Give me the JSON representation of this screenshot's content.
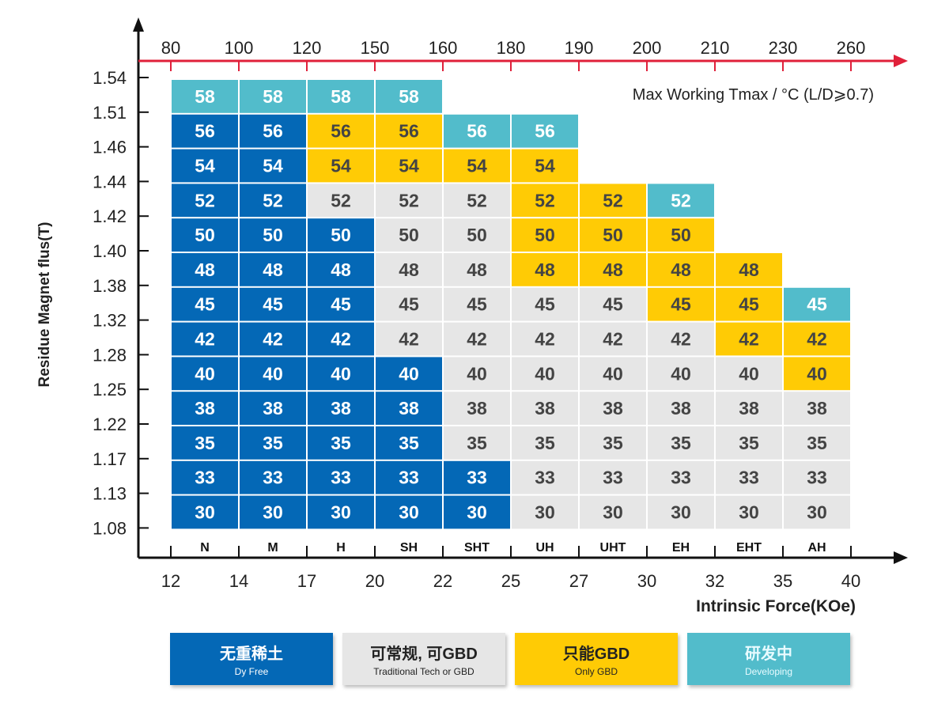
{
  "chart_data": {
    "type": "heatmap",
    "title": "",
    "top_axis_label": "Max Working Tmax / °C (L/D⩾0.7)",
    "xlabel": "Intrinsic Force(KOe)",
    "ylabel": "Residue Magnet flus(T)",
    "grades": [
      "N",
      "M",
      "H",
      "SH",
      "SHT",
      "UH",
      "UHT",
      "EH",
      "EHT",
      "AH"
    ],
    "top_ticks": [
      "80",
      "100",
      "120",
      "150",
      "160",
      "180",
      "190",
      "200",
      "210",
      "230",
      "260"
    ],
    "bottom_ticks": [
      "12",
      "14",
      "17",
      "20",
      "22",
      "25",
      "27",
      "30",
      "32",
      "35",
      "40"
    ],
    "y_ticks": [
      "1.54",
      "1.51",
      "1.46",
      "1.44",
      "1.42",
      "1.40",
      "1.38",
      "1.32",
      "1.28",
      "1.25",
      "1.22",
      "1.17",
      "1.13",
      "1.08"
    ],
    "rows": [
      "58",
      "56",
      "54",
      "52",
      "50",
      "48",
      "45",
      "42",
      "40",
      "38",
      "35",
      "33",
      "30"
    ],
    "cells": [
      [
        "C",
        "C",
        "C",
        "C",
        null,
        null,
        null,
        null,
        null,
        null
      ],
      [
        "B",
        "B",
        "Y",
        "Y",
        "C",
        "C",
        null,
        null,
        null,
        null
      ],
      [
        "B",
        "B",
        "Y",
        "Y",
        "Y",
        "Y",
        null,
        null,
        null,
        null
      ],
      [
        "B",
        "B",
        "G",
        "G",
        "G",
        "Y",
        "Y",
        "C",
        null,
        null
      ],
      [
        "B",
        "B",
        "B",
        "G",
        "G",
        "Y",
        "Y",
        "Y",
        null,
        null
      ],
      [
        "B",
        "B",
        "B",
        "G",
        "G",
        "Y",
        "Y",
        "Y",
        "Y",
        null
      ],
      [
        "B",
        "B",
        "B",
        "G",
        "G",
        "G",
        "G",
        "Y",
        "Y",
        "C"
      ],
      [
        "B",
        "B",
        "B",
        "G",
        "G",
        "G",
        "G",
        "G",
        "Y",
        "Y"
      ],
      [
        "B",
        "B",
        "B",
        "B",
        "G",
        "G",
        "G",
        "G",
        "G",
        "Y"
      ],
      [
        "B",
        "B",
        "B",
        "B",
        "G",
        "G",
        "G",
        "G",
        "G",
        "G"
      ],
      [
        "B",
        "B",
        "B",
        "B",
        "G",
        "G",
        "G",
        "G",
        "G",
        "G"
      ],
      [
        "B",
        "B",
        "B",
        "B",
        "B",
        "G",
        "G",
        "G",
        "G",
        "G"
      ],
      [
        "B",
        "B",
        "B",
        "B",
        "B",
        "G",
        "G",
        "G",
        "G",
        "G"
      ]
    ],
    "colors": {
      "B": "#0468b6",
      "G": "#e6e6e6",
      "Y": "#ffcb05",
      "C": "#52bccb",
      "top_axis": "#e0203a"
    },
    "legend": [
      {
        "key": "B",
        "zh": "无重稀土",
        "en": "Dy Free"
      },
      {
        "key": "G",
        "zh": "可常规, 可GBD",
        "en": "Traditional Tech or GBD"
      },
      {
        "key": "Y",
        "zh": "只能GBD",
        "en": "Only GBD"
      },
      {
        "key": "C",
        "zh": "研发中",
        "en": "Developing"
      }
    ]
  }
}
